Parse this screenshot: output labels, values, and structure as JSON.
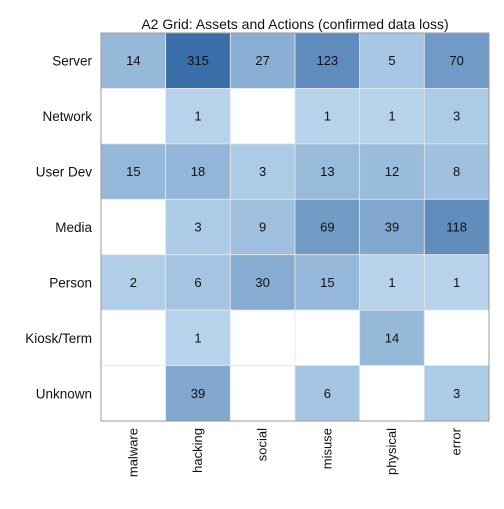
{
  "chart_data": {
    "type": "heatmap",
    "title": "A2 Grid: Assets and Actions (confirmed data loss)",
    "xlabel": "",
    "ylabel": "",
    "columns": [
      "malware",
      "hacking",
      "social",
      "misuse",
      "physical",
      "error"
    ],
    "rows": [
      "Server",
      "Network",
      "User Dev",
      "Media",
      "Person",
      "Kiosk/Term",
      "Unknown"
    ],
    "values": [
      [
        14,
        315,
        27,
        123,
        5,
        70
      ],
      [
        null,
        1,
        null,
        1,
        1,
        3
      ],
      [
        15,
        18,
        3,
        13,
        12,
        8
      ],
      [
        null,
        3,
        9,
        69,
        39,
        118
      ],
      [
        2,
        6,
        30,
        15,
        1,
        1
      ],
      [
        null,
        1,
        null,
        null,
        14,
        null
      ],
      [
        null,
        39,
        null,
        6,
        null,
        3
      ]
    ],
    "color_scale": {
      "low": "#d2e9fb",
      "high": "#3a6ea8",
      "empty": "#ffffff"
    },
    "grid": true,
    "legend": "none"
  }
}
